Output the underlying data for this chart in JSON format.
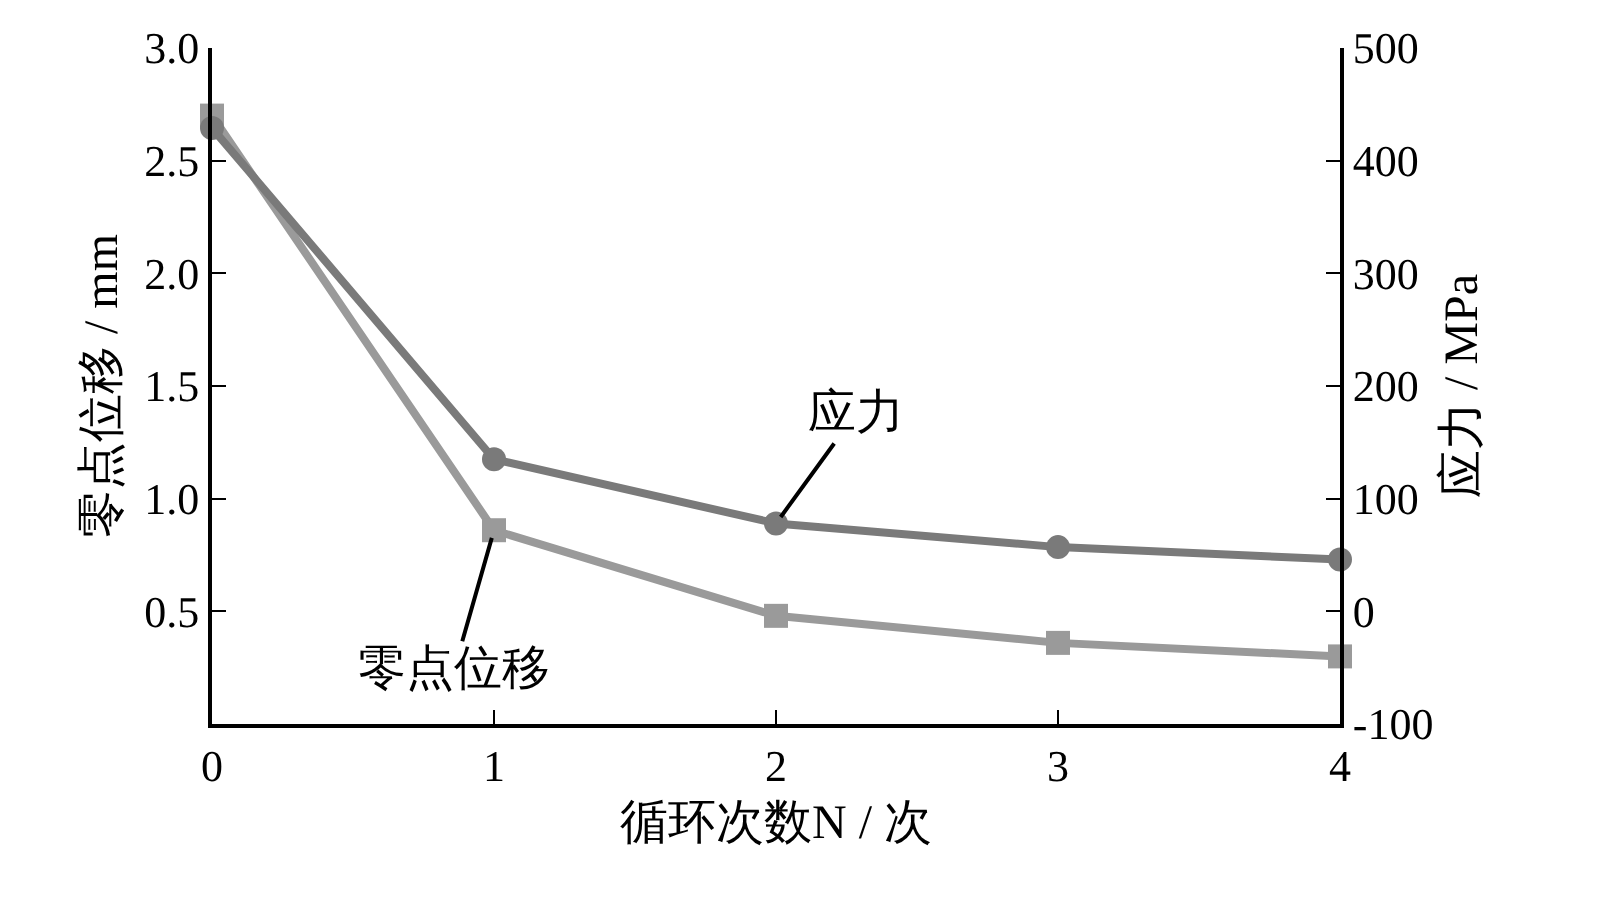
{
  "chart_data": {
    "type": "line",
    "x": [
      0,
      1,
      2,
      3,
      4
    ],
    "xlabel": "循环次数N / 次",
    "ylabel": "零点位移 / mm",
    "y2label": "应力 / MPa",
    "xlim": [
      0,
      4
    ],
    "xticks": [
      0,
      1,
      2,
      3,
      4
    ],
    "ylim": [
      0,
      3.0
    ],
    "yticks": [
      {
        "value": 0.5,
        "label": "0.5"
      },
      {
        "value": 1.0,
        "label": "1.0"
      },
      {
        "value": 1.5,
        "label": "1.5"
      },
      {
        "value": 2.0,
        "label": "2.0"
      },
      {
        "value": 2.5,
        "label": "2.5"
      },
      {
        "value": 3.0,
        "label": "3.0"
      }
    ],
    "y2lim": [
      -100,
      500
    ],
    "y2ticks": [
      -100,
      0,
      100,
      200,
      300,
      400,
      500
    ],
    "series": [
      {
        "name": "零点位移",
        "color": "#9a9a9a",
        "marker": "square",
        "values": [
          2.7,
          0.86,
          0.48,
          0.36,
          0.3
        ]
      },
      {
        "name": "应力",
        "color": "#7a7a7a",
        "marker": "circle",
        "axis": "y2",
        "values": [
          429,
          135,
          78,
          57,
          46
        ]
      }
    ],
    "legend": false,
    "line_style": "solid"
  }
}
